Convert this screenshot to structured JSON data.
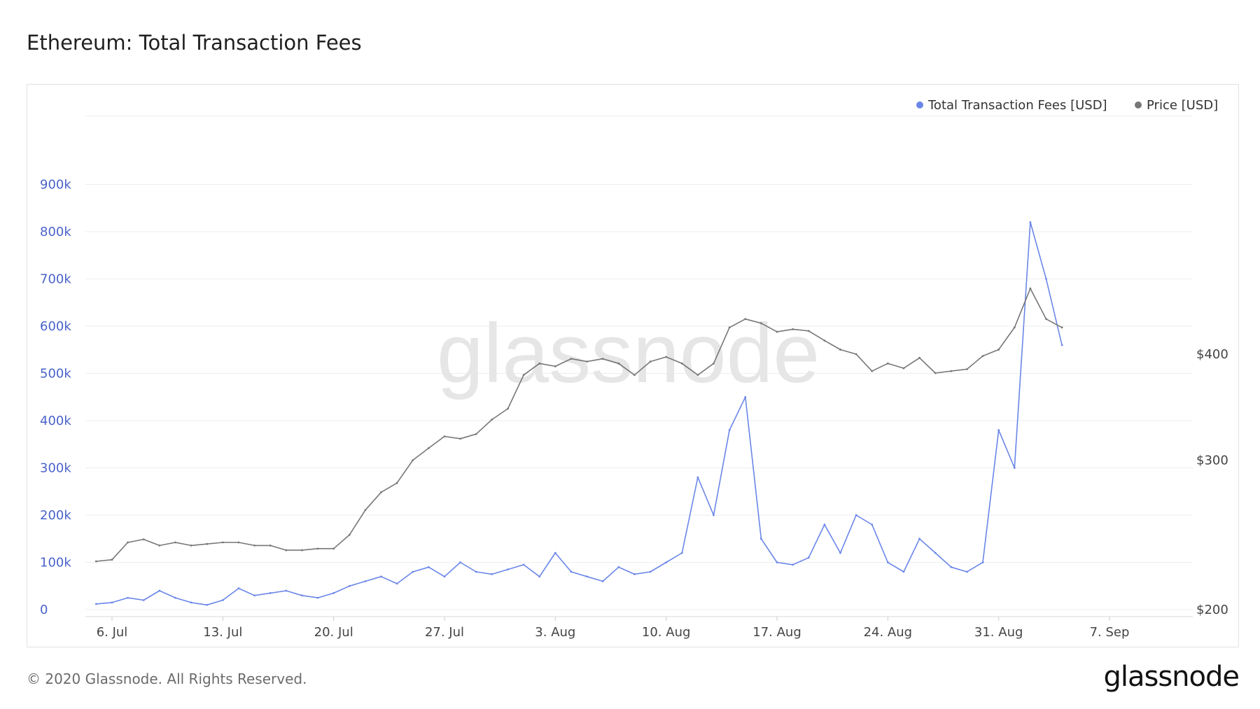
{
  "title": "Ethereum: Total Transaction Fees",
  "footer": "© 2020 Glassnode. All Rights Reserved.",
  "brand": "glassnode",
  "watermark": "glassnode",
  "colors": {
    "fees": "#6a86e8",
    "price": "#777777",
    "left_axis": "#4a63c9",
    "grid": "#eeeeee"
  },
  "chart_data": {
    "type": "line",
    "title": "Ethereum: Total Transaction Fees",
    "x_type": "date",
    "x_ticks": [
      "6. Jul",
      "13. Jul",
      "20. Jul",
      "27. Jul",
      "3. Aug",
      "10. Aug",
      "17. Aug",
      "24. Aug",
      "31. Aug",
      "7. Sep"
    ],
    "y_left": {
      "label": "",
      "range": [
        0,
        1000000
      ],
      "ticks": [
        "0",
        "100k",
        "200k",
        "300k",
        "400k",
        "500k",
        "600k",
        "700k",
        "800k",
        "900k"
      ]
    },
    "y_right": {
      "label": "",
      "range": [
        200,
        500
      ],
      "log": true,
      "ticks": [
        "$200",
        "$300",
        "$400"
      ]
    },
    "grid": true,
    "legend_position": "top-right",
    "series": [
      {
        "name": "Total Transaction Fees [USD]",
        "axis": "left",
        "x": [
          "2020-07-05",
          "2020-07-06",
          "2020-07-07",
          "2020-07-08",
          "2020-07-09",
          "2020-07-10",
          "2020-07-11",
          "2020-07-12",
          "2020-07-13",
          "2020-07-14",
          "2020-07-15",
          "2020-07-16",
          "2020-07-17",
          "2020-07-18",
          "2020-07-19",
          "2020-07-20",
          "2020-07-21",
          "2020-07-22",
          "2020-07-23",
          "2020-07-24",
          "2020-07-25",
          "2020-07-26",
          "2020-07-27",
          "2020-07-28",
          "2020-07-29",
          "2020-07-30",
          "2020-07-31",
          "2020-08-01",
          "2020-08-02",
          "2020-08-03",
          "2020-08-04",
          "2020-08-05",
          "2020-08-06",
          "2020-08-07",
          "2020-08-08",
          "2020-08-09",
          "2020-08-10",
          "2020-08-11",
          "2020-08-12",
          "2020-08-13",
          "2020-08-14",
          "2020-08-15",
          "2020-08-16",
          "2020-08-17",
          "2020-08-18",
          "2020-08-19",
          "2020-08-20",
          "2020-08-21",
          "2020-08-22",
          "2020-08-23",
          "2020-08-24",
          "2020-08-25",
          "2020-08-26",
          "2020-08-27",
          "2020-08-28",
          "2020-08-29",
          "2020-08-30",
          "2020-08-31",
          "2020-09-01",
          "2020-09-02",
          "2020-09-03",
          "2020-09-04"
        ],
        "values": [
          12000,
          15000,
          25000,
          20000,
          40000,
          25000,
          15000,
          10000,
          20000,
          45000,
          30000,
          35000,
          40000,
          30000,
          25000,
          35000,
          50000,
          60000,
          70000,
          55000,
          80000,
          90000,
          70000,
          100000,
          80000,
          75000,
          85000,
          95000,
          70000,
          120000,
          80000,
          70000,
          60000,
          90000,
          75000,
          80000,
          100000,
          120000,
          280000,
          200000,
          380000,
          450000,
          150000,
          100000,
          95000,
          110000,
          180000,
          120000,
          200000,
          180000,
          100000,
          80000,
          150000,
          120000,
          90000,
          80000,
          100000,
          380000,
          300000,
          820000,
          700000,
          560000
        ]
      },
      {
        "name": "Price [USD]",
        "axis": "right",
        "x": [
          "2020-07-05",
          "2020-07-06",
          "2020-07-07",
          "2020-07-08",
          "2020-07-09",
          "2020-07-10",
          "2020-07-11",
          "2020-07-12",
          "2020-07-13",
          "2020-07-14",
          "2020-07-15",
          "2020-07-16",
          "2020-07-17",
          "2020-07-18",
          "2020-07-19",
          "2020-07-20",
          "2020-07-21",
          "2020-07-22",
          "2020-07-23",
          "2020-07-24",
          "2020-07-25",
          "2020-07-26",
          "2020-07-27",
          "2020-07-28",
          "2020-07-29",
          "2020-07-30",
          "2020-07-31",
          "2020-08-01",
          "2020-08-02",
          "2020-08-03",
          "2020-08-04",
          "2020-08-05",
          "2020-08-06",
          "2020-08-07",
          "2020-08-08",
          "2020-08-09",
          "2020-08-10",
          "2020-08-11",
          "2020-08-12",
          "2020-08-13",
          "2020-08-14",
          "2020-08-15",
          "2020-08-16",
          "2020-08-17",
          "2020-08-18",
          "2020-08-19",
          "2020-08-20",
          "2020-08-21",
          "2020-08-22",
          "2020-08-23",
          "2020-08-24",
          "2020-08-25",
          "2020-08-26",
          "2020-08-27",
          "2020-08-28",
          "2020-08-29",
          "2020-08-30",
          "2020-08-31",
          "2020-09-01",
          "2020-09-02",
          "2020-09-03",
          "2020-09-04"
        ],
        "values": [
          228,
          229,
          240,
          242,
          238,
          240,
          238,
          239,
          240,
          240,
          238,
          238,
          235,
          235,
          236,
          236,
          245,
          262,
          275,
          282,
          300,
          310,
          320,
          318,
          322,
          335,
          345,
          378,
          390,
          387,
          395,
          392,
          395,
          390,
          378,
          392,
          397,
          390,
          378,
          390,
          430,
          440,
          435,
          425,
          428,
          426,
          415,
          405,
          400,
          382,
          390,
          385,
          396,
          380,
          382,
          384,
          398,
          405,
          430,
          478,
          440,
          430
        ]
      }
    ]
  },
  "legend": [
    {
      "label": "Total Transaction Fees [USD]",
      "color": "#6a86e8"
    },
    {
      "label": "Price [USD]",
      "color": "#777777"
    }
  ]
}
